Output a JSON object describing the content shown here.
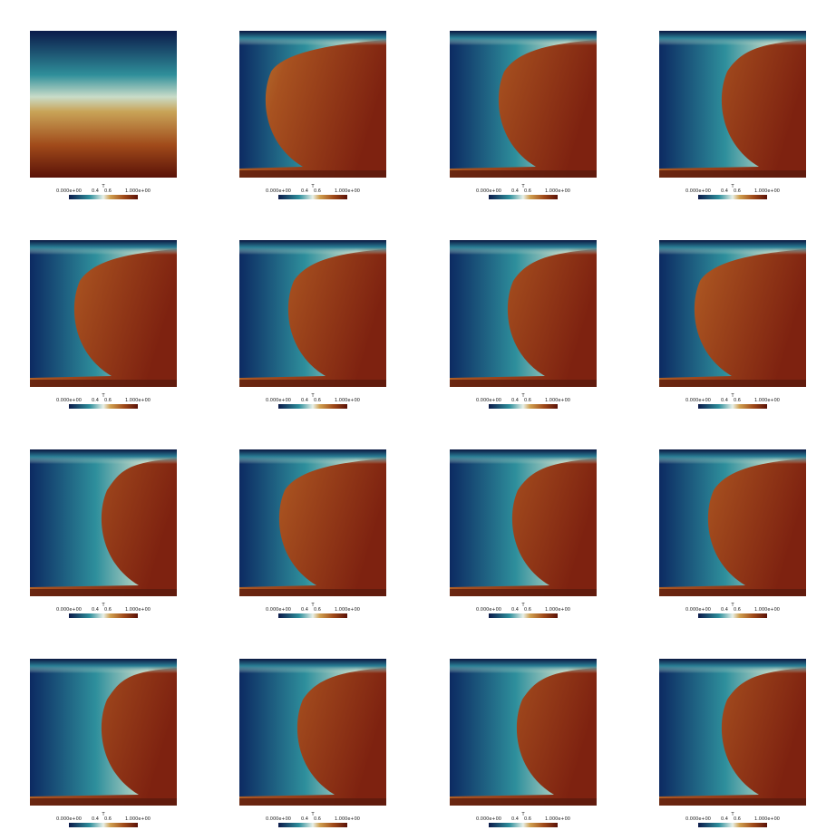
{
  "panels": [
    {
      "colorbar": {
        "title": "T",
        "ticks": [
          "0.000e+00",
          "0.4",
          "0.6",
          "1.000e+00"
        ]
      }
    },
    {
      "colorbar": {
        "title": "T",
        "ticks": [
          "0.000e+00",
          "0.4",
          "0.6",
          "1.000e+00"
        ]
      }
    },
    {
      "colorbar": {
        "title": "T",
        "ticks": [
          "0.000e+00",
          "0.4",
          "0.6",
          "1.000e+00"
        ]
      }
    },
    {
      "colorbar": {
        "title": "T",
        "ticks": [
          "0.000e+00",
          "0.4",
          "0.6",
          "1.000e+00"
        ]
      }
    },
    {
      "colorbar": {
        "title": "T",
        "ticks": [
          "0.000e+00",
          "0.4",
          "0.6",
          "1.000e+00"
        ]
      }
    },
    {
      "colorbar": {
        "title": "T",
        "ticks": [
          "0.000e+00",
          "0.4",
          "0.6",
          "1.000e+00"
        ]
      }
    },
    {
      "colorbar": {
        "title": "T",
        "ticks": [
          "0.000e+00",
          "0.4",
          "0.6",
          "1.000e+00"
        ]
      }
    },
    {
      "colorbar": {
        "title": "T",
        "ticks": [
          "0.000e+00",
          "0.4",
          "0.6",
          "1.000e+00"
        ]
      }
    },
    {
      "colorbar": {
        "title": "T",
        "ticks": [
          "0.000e+00",
          "0.4",
          "0.6",
          "1.000e+00"
        ]
      }
    },
    {
      "colorbar": {
        "title": "T",
        "ticks": [
          "0.000e+00",
          "0.4",
          "0.6",
          "1.000e+00"
        ]
      }
    },
    {
      "colorbar": {
        "title": "T",
        "ticks": [
          "0.000e+00",
          "0.4",
          "0.6",
          "1.000e+00"
        ]
      }
    },
    {
      "colorbar": {
        "title": "T",
        "ticks": [
          "0.000e+00",
          "0.4",
          "0.6",
          "1.000e+00"
        ]
      }
    },
    {
      "colorbar": {
        "title": "T",
        "ticks": [
          "0.000e+00",
          "0.4",
          "0.6",
          "1.000e+00"
        ]
      }
    },
    {
      "colorbar": {
        "title": "T",
        "ticks": [
          "0.000e+00",
          "0.4",
          "0.6",
          "1.000e+00"
        ]
      }
    },
    {
      "colorbar": {
        "title": "T",
        "ticks": [
          "0.000e+00",
          "0.4",
          "0.6",
          "1.000e+00"
        ]
      }
    },
    {
      "colorbar": {
        "title": "T",
        "ticks": [
          "0.000e+00",
          "0.4",
          "0.6",
          "1.000e+00"
        ]
      }
    }
  ]
}
